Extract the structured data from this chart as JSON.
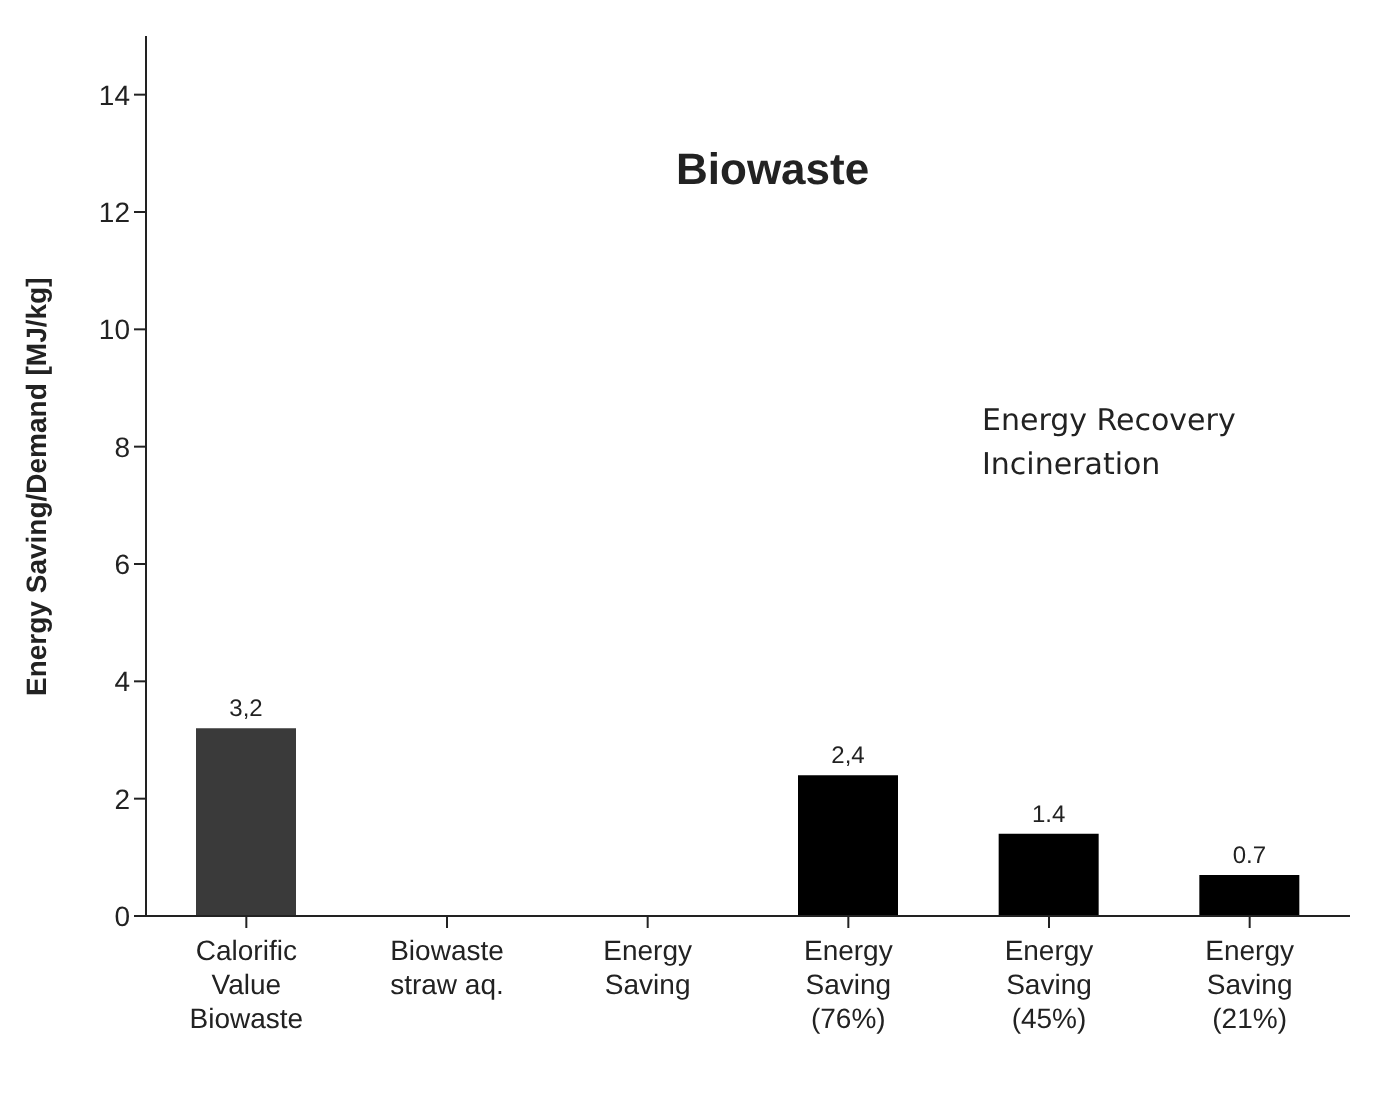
{
  "chart_data": {
    "type": "bar",
    "title": "Biowaste",
    "ylabel": "Energy Saving/Demand  [MJ/kg]",
    "categories": [
      "Calorific Value Biowaste",
      "Biowaste straw aq.",
      "Energy Saving",
      "Energy Saving (76%)",
      "Energy Saving (45%)",
      "Energy Saving (21%)"
    ],
    "values": [
      3.2,
      null,
      null,
      2.4,
      1.4,
      0.7
    ],
    "colors": [
      "#3a3a3a",
      "#000000",
      "#000000",
      "#000000",
      "#000000",
      "#000000"
    ],
    "value_labels": [
      "3,2",
      null,
      null,
      "2,4",
      "1.4",
      "0.7"
    ],
    "ylim": [
      0,
      15
    ],
    "yticks": [
      0,
      2,
      4,
      6,
      8,
      10,
      12,
      14
    ],
    "grid": false,
    "annotations": [
      "Energy Recovery Incineration"
    ]
  }
}
